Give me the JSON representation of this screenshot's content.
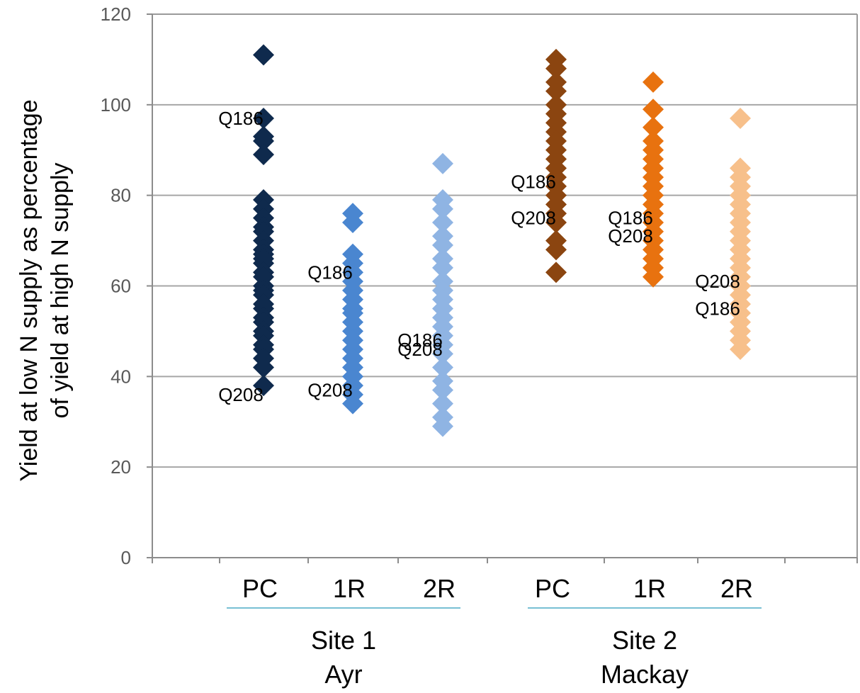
{
  "chart_data": {
    "type": "scatter",
    "ylabel_lines": [
      "Yield at low N supply as percentage",
      "of yield at high N supply"
    ],
    "ylim": [
      0,
      120
    ],
    "yticks": [
      "0",
      "20",
      "40",
      "60",
      "80",
      "100",
      "120"
    ],
    "grid": true,
    "categories": [
      "PC",
      "1R",
      "2R",
      "PC",
      "1R",
      "2R"
    ],
    "groups": [
      {
        "lines": [
          "Site 1",
          "Ayr"
        ],
        "categories": [
          0,
          1,
          2
        ]
      },
      {
        "lines": [
          "Site 2",
          "Mackay"
        ],
        "categories": [
          3,
          4,
          5
        ]
      }
    ],
    "series": [
      {
        "category": "PC",
        "site": "Site 1",
        "color": "#0f2a4d",
        "values": [
          111,
          97,
          93,
          92,
          89,
          79,
          77,
          75,
          73,
          72,
          70,
          68,
          67,
          66,
          65,
          63,
          62,
          60,
          59,
          58,
          56,
          55,
          53,
          52,
          50,
          49,
          47,
          46,
          44,
          42,
          38
        ]
      },
      {
        "category": "1R",
        "site": "Site 1",
        "color": "#4a86d0",
        "values": [
          76,
          74,
          67,
          65,
          63,
          61,
          59,
          57,
          55,
          54,
          52,
          50,
          48,
          46,
          44,
          42,
          40,
          38,
          36,
          34
        ]
      },
      {
        "category": "2R",
        "site": "Site 1",
        "color": "#8fb4e3",
        "values": [
          87,
          79,
          77,
          74,
          71,
          69,
          66,
          64,
          61,
          59,
          57,
          55,
          53,
          51,
          49,
          47,
          45,
          42,
          39,
          37,
          34,
          31,
          29
        ]
      },
      {
        "category": "PC",
        "site": "Site 2",
        "color": "#8b4510",
        "values": [
          110,
          108,
          105,
          103,
          100,
          98,
          96,
          94,
          92,
          90,
          88,
          86,
          84,
          82,
          80,
          78,
          76,
          74,
          70,
          68,
          63
        ]
      },
      {
        "category": "1R",
        "site": "Site 2",
        "color": "#e8720f",
        "values": [
          105,
          99,
          95,
          92,
          90,
          88,
          86,
          84,
          82,
          80,
          78,
          76,
          74,
          72,
          70,
          68,
          66,
          64,
          62
        ]
      },
      {
        "category": "2R",
        "site": "Site 2",
        "color": "#f7c08b",
        "values": [
          97,
          86,
          84,
          82,
          80,
          78,
          76,
          74,
          72,
          70,
          68,
          66,
          64,
          62,
          60,
          58,
          56,
          54,
          52,
          50,
          48,
          46
        ]
      }
    ],
    "annotations": [
      {
        "text": "Q186",
        "category": 0,
        "y": 97
      },
      {
        "text": "Q208",
        "category": 0,
        "y": 36
      },
      {
        "text": "Q186",
        "category": 1,
        "y": 63
      },
      {
        "text": "Q208",
        "category": 1,
        "y": 37
      },
      {
        "text": "Q186",
        "category": 2,
        "y": 48
      },
      {
        "text": "Q208",
        "category": 2,
        "y": 46
      },
      {
        "text": "Q186",
        "category": 3,
        "y": 83
      },
      {
        "text": "Q208",
        "category": 3,
        "y": 75
      },
      {
        "text": "Q186",
        "category": 4,
        "y": 75
      },
      {
        "text": "Q208",
        "category": 4,
        "y": 71
      },
      {
        "text": "Q208",
        "category": 5,
        "y": 61
      },
      {
        "text": "Q186",
        "category": 5,
        "y": 55
      }
    ]
  }
}
